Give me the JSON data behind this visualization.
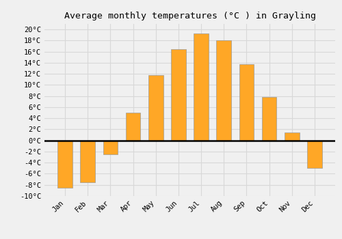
{
  "title": "Average monthly temperatures (°C ) in Grayling",
  "months": [
    "Jan",
    "Feb",
    "Mar",
    "Apr",
    "May",
    "Jun",
    "Jul",
    "Aug",
    "Sep",
    "Oct",
    "Nov",
    "Dec"
  ],
  "values": [
    -8.5,
    -7.5,
    -2.5,
    5.0,
    11.8,
    16.5,
    19.3,
    18.0,
    13.8,
    7.8,
    1.5,
    -5.0
  ],
  "bar_color": "#FFA726",
  "bar_edge_color": "#999999",
  "ylim": [
    -10,
    21
  ],
  "yticks": [
    -10,
    -8,
    -6,
    -4,
    -2,
    0,
    2,
    4,
    6,
    8,
    10,
    12,
    14,
    16,
    18,
    20
  ],
  "background_color": "#f0f0f0",
  "plot_background": "#f0f0f0",
  "grid_color": "#d8d8d8",
  "title_fontsize": 9.5,
  "tick_fontsize": 7.5,
  "zero_line_color": "#000000",
  "bar_width": 0.65
}
